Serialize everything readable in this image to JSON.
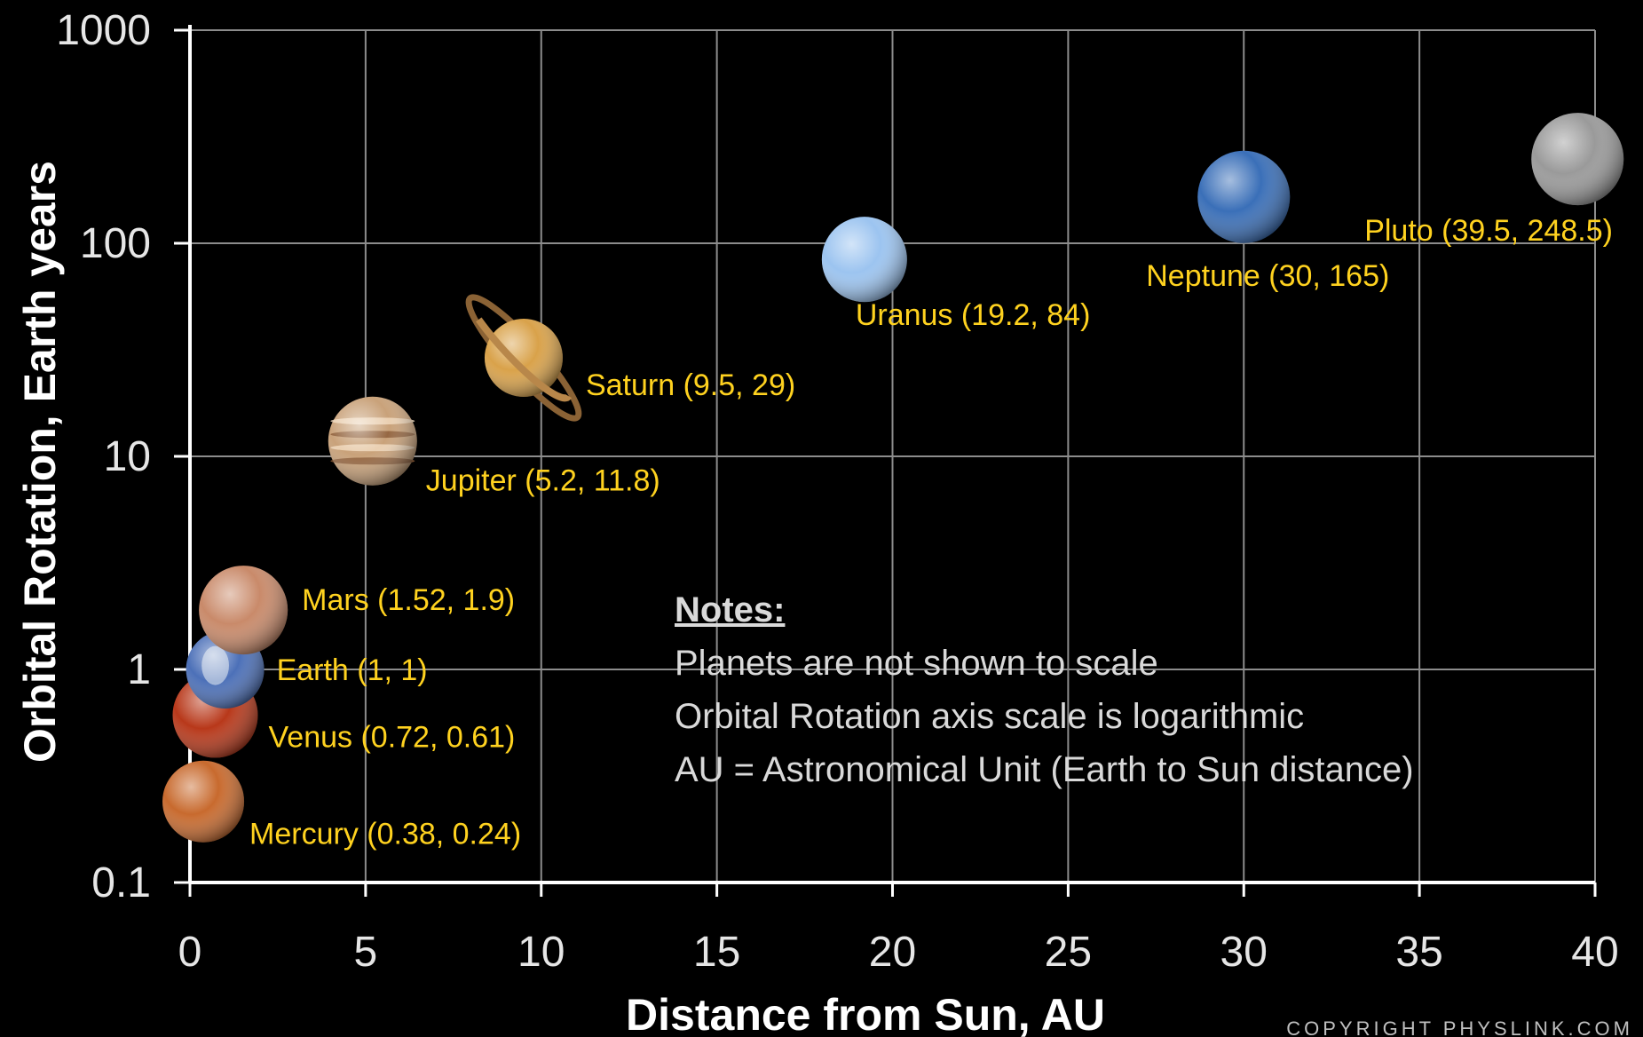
{
  "chart_data": {
    "type": "scatter",
    "xlabel": "Distance from Sun, AU",
    "ylabel": "Orbital Rotation, Earth years",
    "xlim": [
      0,
      40
    ],
    "ylim": [
      0.1,
      1000
    ],
    "y_scale": "log",
    "grid": true,
    "x_ticks": [
      "0",
      "5",
      "10",
      "15",
      "20",
      "25",
      "30",
      "35",
      "40"
    ],
    "y_ticks": [
      "0.1",
      "1",
      "10",
      "100",
      "1000"
    ],
    "points": [
      {
        "name": "Mercury",
        "x": 0.38,
        "y": 0.24,
        "label": "Mercury (0.38, 0.24)",
        "color": "#c86a2e",
        "icon": "mercury-planet-icon"
      },
      {
        "name": "Venus",
        "x": 0.72,
        "y": 0.61,
        "label": "Venus (0.72, 0.61)",
        "color": "#b8381a",
        "icon": "venus-planet-icon"
      },
      {
        "name": "Earth",
        "x": 1,
        "y": 1,
        "label": "Earth (1, 1)",
        "color": "#4c70b8",
        "icon": "earth-planet-icon"
      },
      {
        "name": "Mars",
        "x": 1.52,
        "y": 1.9,
        "label": "Mars (1.52, 1.9)",
        "color": "#c98a6a",
        "icon": "mars-planet-icon"
      },
      {
        "name": "Jupiter",
        "x": 5.2,
        "y": 11.8,
        "label": "Jupiter (5.2, 11.8)",
        "color": "#c9a27a",
        "icon": "jupiter-planet-icon"
      },
      {
        "name": "Saturn",
        "x": 9.5,
        "y": 29,
        "label": "Saturn (9.5, 29)",
        "color": "#d9a24a",
        "icon": "saturn-planet-icon"
      },
      {
        "name": "Uranus",
        "x": 19.2,
        "y": 84,
        "label": "Uranus (19.2, 84)",
        "color": "#9cc4f0",
        "icon": "uranus-planet-icon"
      },
      {
        "name": "Neptune",
        "x": 30,
        "y": 165,
        "label": "Neptune (30, 165)",
        "color": "#3a6fb8",
        "icon": "neptune-planet-icon"
      },
      {
        "name": "Pluto",
        "x": 39.5,
        "y": 248.5,
        "label": "Pluto (39.5, 248.5)",
        "color": "#9a9a9a",
        "icon": "pluto-planet-icon"
      }
    ],
    "notes": {
      "title": "Notes:",
      "lines": [
        "Planets are not shown to scale",
        "Orbital Rotation axis scale is logarithmic",
        "AU = Astronomical Unit (Earth to Sun distance)"
      ]
    },
    "copyright": "COPYRIGHT PHYSLINK.COM",
    "colors": {
      "background": "#000000",
      "grid": "#8c8c8c",
      "axis": "#ffffff",
      "label": "#ffd21f",
      "notes": "#d9d9d9"
    }
  }
}
